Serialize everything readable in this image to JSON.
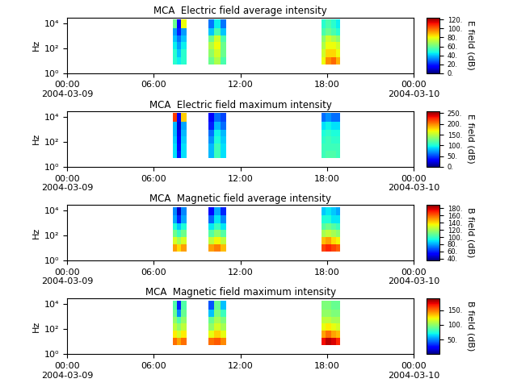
{
  "chart_data": [
    {
      "type": "heatmap",
      "title": "MCA  Electric field average intensity",
      "y_label": "Hz",
      "log": "y",
      "xlim": [
        0,
        24
      ],
      "xticks": [
        {
          "value": 0,
          "label": "00:00\n2004-03-09"
        },
        {
          "value": 6,
          "label": "06:00"
        },
        {
          "value": 12,
          "label": "12:00"
        },
        {
          "value": 18,
          "label": "18:00"
        },
        {
          "value": 24,
          "label": "00:00\n2004-03-10"
        }
      ],
      "ylim": [
        1,
        30000
      ],
      "yticks": [
        {
          "value": 1,
          "label": "10⁰"
        },
        {
          "value": 100,
          "label": "10²"
        },
        {
          "value": 10000,
          "label": "10⁴"
        }
      ],
      "x_edges": [
        7.3,
        7.6,
        7.9,
        8.3,
        9.8,
        10.2,
        10.6,
        11.0,
        17.6,
        17.9,
        18.3,
        18.6,
        18.9
      ],
      "y_edges": [
        5,
        20,
        80,
        300,
        1000,
        4000,
        20000
      ],
      "cells": [
        [
          50,
          45,
          50,
          null,
          60,
          70,
          55,
          null,
          80,
          95,
          100,
          90
        ],
        [
          50,
          40,
          50,
          null,
          65,
          75,
          60,
          null,
          75,
          85,
          85,
          80
        ],
        [
          45,
          35,
          45,
          null,
          70,
          80,
          60,
          null,
          70,
          80,
          80,
          75
        ],
        [
          40,
          30,
          40,
          null,
          60,
          75,
          55,
          null,
          65,
          75,
          70,
          65
        ],
        [
          35,
          20,
          35,
          null,
          40,
          55,
          40,
          null,
          55,
          60,
          55,
          50
        ],
        [
          60,
          15,
          80,
          null,
          30,
          45,
          30,
          null,
          50,
          55,
          50,
          45
        ]
      ],
      "colorbar_label": "E field (dB)",
      "colorbar_range": [
        0,
        125
      ],
      "colorbar_ticks": [
        {
          "value": 0,
          "label": "0."
        },
        {
          "value": 20,
          "label": "20."
        },
        {
          "value": 40,
          "label": "40."
        },
        {
          "value": 60,
          "label": "60."
        },
        {
          "value": 80,
          "label": "80."
        },
        {
          "value": 100,
          "label": "100."
        },
        {
          "value": 120,
          "label": "120."
        }
      ]
    },
    {
      "type": "heatmap",
      "title": "MCA  Electric field maximum intensity",
      "y_label": "Hz",
      "log": "y",
      "xlim": [
        0,
        24
      ],
      "xticks": [
        {
          "value": 0,
          "label": "00:00\n2004-03-09"
        },
        {
          "value": 6,
          "label": "06:00"
        },
        {
          "value": 12,
          "label": "12:00"
        },
        {
          "value": 18,
          "label": "18:00"
        },
        {
          "value": 24,
          "label": "00:00\n2004-03-10"
        }
      ],
      "ylim": [
        1,
        30000
      ],
      "yticks": [
        {
          "value": 1,
          "label": "10⁰"
        },
        {
          "value": 100,
          "label": "10²"
        },
        {
          "value": 10000,
          "label": "10⁴"
        }
      ],
      "x_edges": [
        7.3,
        7.6,
        7.9,
        8.3,
        9.8,
        10.2,
        10.6,
        11.0,
        17.6,
        17.9,
        18.3,
        18.6,
        18.9
      ],
      "y_edges": [
        5,
        20,
        80,
        300,
        1000,
        4000,
        20000
      ],
      "cells": [
        [
          90,
          40,
          90,
          null,
          80,
          110,
          90,
          null,
          110,
          115,
          115,
          110
        ],
        [
          90,
          35,
          90,
          null,
          80,
          110,
          90,
          null,
          110,
          110,
          110,
          110
        ],
        [
          85,
          30,
          85,
          null,
          70,
          100,
          85,
          null,
          105,
          110,
          105,
          105
        ],
        [
          80,
          25,
          80,
          null,
          60,
          95,
          80,
          null,
          100,
          105,
          100,
          100
        ],
        [
          80,
          20,
          75,
          null,
          40,
          80,
          60,
          null,
          90,
          95,
          90,
          90
        ],
        [
          220,
          30,
          180,
          null,
          30,
          60,
          50,
          null,
          60,
          70,
          60,
          60
        ]
      ],
      "colorbar_label": "E field (dB)",
      "colorbar_range": [
        0,
        260
      ],
      "colorbar_ticks": [
        {
          "value": 0,
          "label": "0."
        },
        {
          "value": 50,
          "label": "50."
        },
        {
          "value": 100,
          "label": "100."
        },
        {
          "value": 150,
          "label": "150."
        },
        {
          "value": 200,
          "label": "200."
        },
        {
          "value": 250,
          "label": "250."
        }
      ]
    },
    {
      "type": "heatmap",
      "title": "MCA  Magnetic field average intensity",
      "y_label": "Hz",
      "log": "y",
      "xlim": [
        0,
        24
      ],
      "xticks": [
        {
          "value": 0,
          "label": "00:00\n2004-03-09"
        },
        {
          "value": 6,
          "label": "06:00"
        },
        {
          "value": 12,
          "label": "12:00"
        },
        {
          "value": 18,
          "label": "18:00"
        },
        {
          "value": 24,
          "label": "00:00\n2004-03-10"
        }
      ],
      "ylim": [
        1,
        30000
      ],
      "yticks": [
        {
          "value": 1,
          "label": "10⁰"
        },
        {
          "value": 100,
          "label": "10²"
        },
        {
          "value": 10000,
          "label": "10⁴"
        }
      ],
      "x_edges": [
        7.3,
        7.6,
        7.9,
        8.3,
        9.8,
        10.2,
        10.6,
        11.0,
        17.6,
        17.9,
        18.3,
        18.6,
        18.9
      ],
      "y_edges": [
        5,
        20,
        80,
        300,
        1000,
        4000,
        20000
      ],
      "cells": [
        [
          150,
          140,
          150,
          null,
          150,
          155,
          145,
          null,
          165,
          170,
          165,
          160
        ],
        [
          130,
          120,
          130,
          null,
          125,
          135,
          125,
          null,
          145,
          150,
          140,
          135
        ],
        [
          110,
          100,
          110,
          null,
          105,
          115,
          105,
          null,
          120,
          125,
          120,
          115
        ],
        [
          95,
          85,
          95,
          null,
          90,
          100,
          90,
          null,
          105,
          110,
          105,
          100
        ],
        [
          80,
          60,
          80,
          null,
          70,
          90,
          75,
          null,
          95,
          95,
          90,
          90
        ],
        [
          75,
          45,
          75,
          null,
          55,
          80,
          60,
          null,
          85,
          90,
          85,
          80
        ]
      ],
      "colorbar_label": "B field (dB)",
      "colorbar_range": [
        35,
        190
      ],
      "colorbar_ticks": [
        {
          "value": 40,
          "label": "40."
        },
        {
          "value": 60,
          "label": "60."
        },
        {
          "value": 80,
          "label": "80."
        },
        {
          "value": 100,
          "label": "100."
        },
        {
          "value": 120,
          "label": "120."
        },
        {
          "value": 140,
          "label": "140."
        },
        {
          "value": 160,
          "label": "160."
        },
        {
          "value": 180,
          "label": "180."
        }
      ]
    },
    {
      "type": "heatmap",
      "title": "MCA  Magnetic field maximum intensity",
      "y_label": "Hz",
      "log": "y",
      "xlim": [
        0,
        24
      ],
      "xticks": [
        {
          "value": 0,
          "label": "00:00\n2004-03-09"
        },
        {
          "value": 6,
          "label": "06:00"
        },
        {
          "value": 12,
          "label": "12:00"
        },
        {
          "value": 18,
          "label": "18:00"
        },
        {
          "value": 24,
          "label": "00:00\n2004-03-10"
        }
      ],
      "ylim": [
        1,
        30000
      ],
      "yticks": [
        {
          "value": 1,
          "label": "10⁰"
        },
        {
          "value": 100,
          "label": "10²"
        },
        {
          "value": 10000,
          "label": "10⁴"
        }
      ],
      "x_edges": [
        7.3,
        7.6,
        7.9,
        8.3,
        9.8,
        10.2,
        10.6,
        11.0,
        17.6,
        17.9,
        18.3,
        18.6,
        18.9
      ],
      "y_edges": [
        5,
        20,
        80,
        300,
        1000,
        4000,
        20000
      ],
      "cells": [
        [
          150,
          140,
          150,
          null,
          150,
          155,
          145,
          null,
          170,
          180,
          175,
          165
        ],
        [
          125,
          115,
          125,
          null,
          120,
          130,
          120,
          null,
          140,
          150,
          140,
          135
        ],
        [
          110,
          100,
          110,
          null,
          100,
          115,
          105,
          null,
          120,
          125,
          120,
          115
        ],
        [
          100,
          85,
          100,
          null,
          90,
          105,
          95,
          null,
          110,
          110,
          105,
          105
        ],
        [
          90,
          50,
          90,
          null,
          60,
          95,
          80,
          null,
          100,
          100,
          95,
          95
        ],
        [
          85,
          30,
          85,
          null,
          40,
          90,
          60,
          null,
          95,
          95,
          90,
          90
        ]
      ],
      "colorbar_label": "B field (dB)",
      "colorbar_range": [
        0,
        190
      ],
      "colorbar_ticks": [
        {
          "value": 50,
          "label": "50."
        },
        {
          "value": 100,
          "label": "100."
        },
        {
          "value": 150,
          "label": "150."
        }
      ]
    }
  ]
}
